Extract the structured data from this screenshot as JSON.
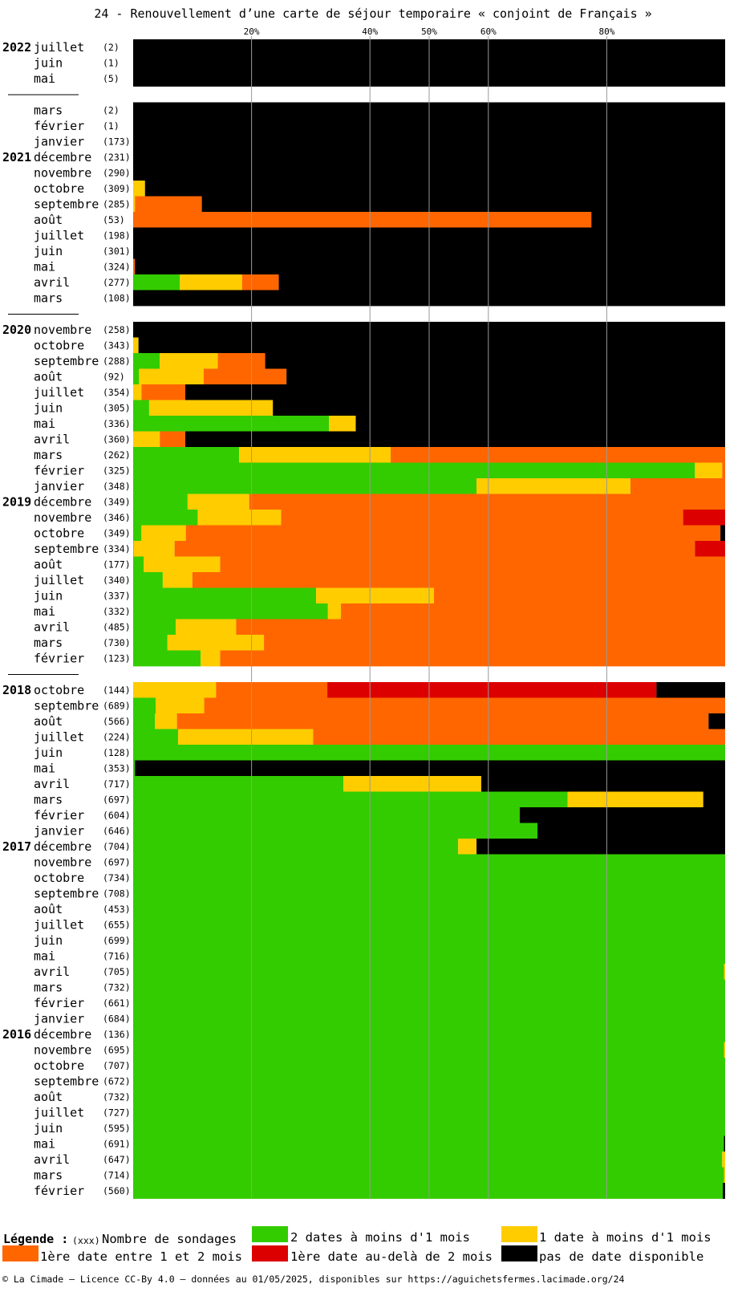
{
  "chart_data": {
    "type": "bar",
    "stacked": true,
    "orientation": "horizontal",
    "title": "24 - Renouvellement d’une carte de séjour temporaire « conjoint de Français »",
    "x_ticks": [
      "20%",
      "40%",
      "50%",
      "60%",
      "80%"
    ],
    "x_tick_values": [
      20,
      40,
      50,
      60,
      80
    ],
    "xlim": [
      0,
      100
    ],
    "colors": {
      "green": "#33cc00",
      "yellow": "#ffcc00",
      "orange": "#ff6600",
      "red": "#dd0000",
      "black": "#000000"
    },
    "series": [
      {
        "name": "2 dates à moins d'1 mois",
        "color": "green"
      },
      {
        "name": "1 date à moins d'1 mois",
        "color": "yellow"
      },
      {
        "name": "1ère date entre 1 et 2 mois",
        "color": "orange"
      },
      {
        "name": "1ère date au-delà de 2 mois",
        "color": "red"
      },
      {
        "name": "pas de date disponible",
        "color": "black"
      }
    ],
    "groups": [
      {
        "rows": [
          {
            "year": "2022",
            "month": "juillet",
            "count": "(2)",
            "values": [
              0,
              0,
              0,
              0,
              100
            ]
          },
          {
            "year": "",
            "month": "juin",
            "count": "(1)",
            "values": [
              0,
              0,
              0,
              0,
              100
            ]
          },
          {
            "year": "",
            "month": "mai",
            "count": "(5)",
            "values": [
              0,
              0,
              0,
              0,
              100
            ]
          }
        ]
      },
      {
        "rows": [
          {
            "year": "",
            "month": "mars",
            "count": "(2)",
            "values": [
              0,
              0,
              0,
              0,
              100
            ]
          },
          {
            "year": "",
            "month": "février",
            "count": "(1)",
            "values": [
              0,
              0,
              0,
              0,
              100
            ]
          },
          {
            "year": "",
            "month": "janvier",
            "count": "(173)",
            "values": [
              0,
              0,
              0,
              0,
              100
            ]
          },
          {
            "year": "2021",
            "month": "décembre",
            "count": "(231)",
            "values": [
              0,
              0,
              0,
              0,
              100
            ]
          },
          {
            "year": "",
            "month": "novembre",
            "count": "(290)",
            "values": [
              0,
              0,
              0,
              0,
              100
            ]
          },
          {
            "year": "",
            "month": "octobre",
            "count": "(309)",
            "values": [
              0,
              2,
              0,
              0,
              98
            ]
          },
          {
            "year": "",
            "month": "septembre",
            "count": "(285)",
            "values": [
              0,
              0.3,
              11.3,
              0,
              88.4
            ]
          },
          {
            "year": "",
            "month": "août",
            "count": "(53)",
            "values": [
              0,
              0,
              77.4,
              0,
              22.6
            ]
          },
          {
            "year": "",
            "month": "juillet",
            "count": "(198)",
            "values": [
              0,
              0,
              0,
              0,
              100
            ]
          },
          {
            "year": "",
            "month": "juin",
            "count": "(301)",
            "values": [
              0,
              0,
              0,
              0,
              100
            ]
          },
          {
            "year": "",
            "month": "mai",
            "count": "(324)",
            "values": [
              0,
              0,
              0.3,
              0,
              99.7
            ]
          },
          {
            "year": "",
            "month": "avril",
            "count": "(277)",
            "values": [
              7.9,
              10.5,
              6.2,
              0,
              75.4
            ]
          },
          {
            "year": "",
            "month": "mars",
            "count": "(108)",
            "values": [
              0,
              0,
              0,
              0,
              100
            ]
          }
        ]
      },
      {
        "rows": [
          {
            "year": "2020",
            "month": "novembre",
            "count": "(258)",
            "values": [
              0,
              0,
              0,
              0,
              100
            ]
          },
          {
            "year": "",
            "month": "octobre",
            "count": "(343)",
            "values": [
              0,
              0.9,
              0,
              0,
              99.1
            ]
          },
          {
            "year": "",
            "month": "septembre",
            "count": "(288)",
            "values": [
              4.5,
              9.8,
              8,
              0,
              77.7
            ]
          },
          {
            "year": "",
            "month": "août",
            "count": "(92)",
            "values": [
              1,
              10.9,
              14,
              0,
              74.1
            ]
          },
          {
            "year": "",
            "month": "juillet",
            "count": "(354)",
            "values": [
              0,
              1.4,
              7.4,
              0,
              91.2
            ]
          },
          {
            "year": "",
            "month": "juin",
            "count": "(305)",
            "values": [
              2.7,
              20.9,
              0,
              0,
              76.4
            ]
          },
          {
            "year": "",
            "month": "mai",
            "count": "(336)",
            "values": [
              33.1,
              4.5,
              0,
              0,
              62.4
            ]
          },
          {
            "year": "",
            "month": "avril",
            "count": "(360)",
            "values": [
              0,
              4.5,
              4.3,
              0,
              91.2
            ]
          },
          {
            "year": "",
            "month": "mars",
            "count": "(262)",
            "values": [
              17.9,
              25.6,
              56.5,
              0,
              0
            ]
          },
          {
            "year": "",
            "month": "février",
            "count": "(325)",
            "values": [
              94.9,
              4.6,
              0.5,
              0,
              0
            ]
          },
          {
            "year": "",
            "month": "janvier",
            "count": "(348)",
            "values": [
              58,
              26,
              16,
              0,
              0
            ]
          },
          {
            "year": "2019",
            "month": "décembre",
            "count": "(349)",
            "values": [
              9.2,
              10.4,
              80.4,
              0,
              0
            ]
          },
          {
            "year": "",
            "month": "novembre",
            "count": "(346)",
            "values": [
              10.9,
              14.1,
              67.9,
              7.1,
              0
            ]
          },
          {
            "year": "",
            "month": "octobre",
            "count": "(349)",
            "values": [
              1.4,
              7.5,
              90.3,
              0,
              0.8
            ]
          },
          {
            "year": "",
            "month": "septembre",
            "count": "(334)",
            "values": [
              0.1,
              6.9,
              87.9,
              5.1,
              0
            ]
          },
          {
            "year": "",
            "month": "août",
            "count": "(177)",
            "values": [
              1.8,
              12.9,
              85.3,
              0,
              0
            ]
          },
          {
            "year": "",
            "month": "juillet",
            "count": "(340)",
            "values": [
              5,
              5,
              90,
              0,
              0
            ]
          },
          {
            "year": "",
            "month": "juin",
            "count": "(337)",
            "values": [
              30.9,
              19.9,
              49.2,
              0,
              0
            ]
          },
          {
            "year": "",
            "month": "mai",
            "count": "(332)",
            "values": [
              32.9,
              2.2,
              64.9,
              0,
              0
            ]
          },
          {
            "year": "",
            "month": "avril",
            "count": "(485)",
            "values": [
              7.2,
              10.2,
              82.6,
              0,
              0
            ]
          },
          {
            "year": "",
            "month": "mars",
            "count": "(730)",
            "values": [
              5.8,
              16.3,
              77.9,
              0,
              0
            ]
          },
          {
            "year": "",
            "month": "février",
            "count": "(123)",
            "values": [
              11.4,
              3.3,
              85.3,
              0,
              0
            ]
          }
        ]
      },
      {
        "rows": [
          {
            "year": "2018",
            "month": "octobre",
            "count": "(144)",
            "values": [
              0,
              14,
              18.8,
              55.6,
              11.6
            ]
          },
          {
            "year": "",
            "month": "septembre",
            "count": "(689)",
            "values": [
              3.8,
              8.2,
              88,
              0,
              0
            ]
          },
          {
            "year": "",
            "month": "août",
            "count": "(566)",
            "values": [
              3.7,
              3.7,
              89.8,
              0,
              2.8
            ]
          },
          {
            "year": "",
            "month": "juillet",
            "count": "(224)",
            "values": [
              7.6,
              22.8,
              69.6,
              0,
              0
            ]
          },
          {
            "year": "",
            "month": "juin",
            "count": "(128)",
            "values": [
              100,
              0,
              0,
              0,
              0
            ]
          },
          {
            "year": "",
            "month": "mai",
            "count": "(353)",
            "values": [
              0.3,
              0,
              0,
              0,
              99.7
            ]
          },
          {
            "year": "",
            "month": "avril",
            "count": "(717)",
            "values": [
              35.5,
              23.3,
              0,
              0,
              41.2
            ]
          },
          {
            "year": "",
            "month": "mars",
            "count": "(697)",
            "values": [
              73.4,
              22.9,
              0,
              0,
              3.7
            ]
          },
          {
            "year": "",
            "month": "février",
            "count": "(604)",
            "values": [
              65.3,
              0,
              0,
              0,
              34.7
            ]
          },
          {
            "year": "",
            "month": "janvier",
            "count": "(646)",
            "values": [
              68.3,
              0,
              0,
              0,
              31.7
            ]
          },
          {
            "year": "2017",
            "month": "décembre",
            "count": "(704)",
            "values": [
              54.9,
              3.1,
              0,
              0,
              42
            ]
          },
          {
            "year": "",
            "month": "novembre",
            "count": "(697)",
            "values": [
              100,
              0,
              0,
              0,
              0
            ]
          },
          {
            "year": "",
            "month": "octobre",
            "count": "(734)",
            "values": [
              100,
              0,
              0,
              0,
              0
            ]
          },
          {
            "year": "",
            "month": "septembre",
            "count": "(708)",
            "values": [
              100,
              0,
              0,
              0,
              0
            ]
          },
          {
            "year": "",
            "month": "août",
            "count": "(453)",
            "values": [
              100,
              0,
              0,
              0,
              0
            ]
          },
          {
            "year": "",
            "month": "juillet",
            "count": "(655)",
            "values": [
              100,
              0,
              0,
              0,
              0
            ]
          },
          {
            "year": "",
            "month": "juin",
            "count": "(699)",
            "values": [
              100,
              0,
              0,
              0,
              0
            ]
          },
          {
            "year": "",
            "month": "mai",
            "count": "(716)",
            "values": [
              100,
              0,
              0,
              0,
              0
            ]
          },
          {
            "year": "",
            "month": "avril",
            "count": "(705)",
            "values": [
              99.8,
              0.2,
              0,
              0,
              0
            ]
          },
          {
            "year": "",
            "month": "mars",
            "count": "(732)",
            "values": [
              100,
              0,
              0,
              0,
              0
            ]
          },
          {
            "year": "",
            "month": "février",
            "count": "(661)",
            "values": [
              100,
              0,
              0,
              0,
              0
            ]
          },
          {
            "year": "",
            "month": "janvier",
            "count": "(684)",
            "values": [
              100,
              0,
              0,
              0,
              0
            ]
          },
          {
            "year": "2016",
            "month": "décembre",
            "count": "(136)",
            "values": [
              100,
              0,
              0,
              0,
              0
            ]
          },
          {
            "year": "",
            "month": "novembre",
            "count": "(695)",
            "values": [
              99.8,
              0.2,
              0,
              0,
              0
            ]
          },
          {
            "year": "",
            "month": "octobre",
            "count": "(707)",
            "values": [
              100,
              0,
              0,
              0,
              0
            ]
          },
          {
            "year": "",
            "month": "septembre",
            "count": "(672)",
            "values": [
              100,
              0,
              0,
              0,
              0
            ]
          },
          {
            "year": "",
            "month": "août",
            "count": "(732)",
            "values": [
              100,
              0,
              0,
              0,
              0
            ]
          },
          {
            "year": "",
            "month": "juillet",
            "count": "(727)",
            "values": [
              100,
              0,
              0,
              0,
              0
            ]
          },
          {
            "year": "",
            "month": "juin",
            "count": "(595)",
            "values": [
              100,
              0,
              0,
              0,
              0
            ]
          },
          {
            "year": "",
            "month": "mai",
            "count": "(691)",
            "values": [
              99.8,
              0,
              0,
              0,
              0.2
            ]
          },
          {
            "year": "",
            "month": "avril",
            "count": "(647)",
            "values": [
              99.5,
              0.5,
              0,
              0,
              0
            ]
          },
          {
            "year": "",
            "month": "mars",
            "count": "(714)",
            "values": [
              99.8,
              0.2,
              0,
              0,
              0
            ]
          },
          {
            "year": "",
            "month": "février",
            "count": "(560)",
            "values": [
              99.6,
              0,
              0,
              0,
              0.4
            ]
          }
        ]
      }
    ],
    "legend": {
      "title": "Légende :",
      "count_hint": "(xxx)",
      "count_label": "Nombre de sondages"
    }
  },
  "footer": "© La Cimade — Licence CC-By 4.0 — données au 01/05/2025, disponibles sur https://aguichetsfermes.lacimade.org/24"
}
